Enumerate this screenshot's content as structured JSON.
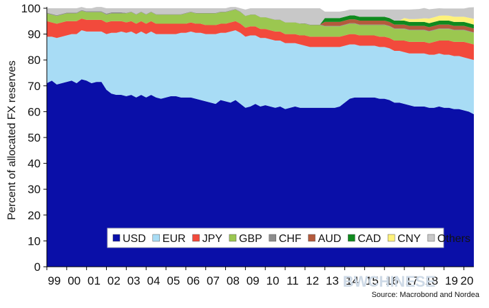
{
  "chart_data": {
    "type": "area",
    "stacked": true,
    "ylabel": "Percent of allocated FX reserves",
    "ylim": [
      0,
      100
    ],
    "yticks": [
      0,
      10,
      20,
      30,
      40,
      50,
      60,
      70,
      80,
      90,
      100
    ],
    "x_tick_labels": [
      "99",
      "00",
      "01",
      "02",
      "03",
      "04",
      "05",
      "06",
      "07",
      "08",
      "09",
      "10",
      "11",
      "12",
      "13",
      "14",
      "15",
      "16",
      "17",
      "18",
      "19",
      "20"
    ],
    "x_quarters": [
      "1999Q1",
      "1999Q2",
      "1999Q3",
      "1999Q4",
      "2000Q1",
      "2000Q2",
      "2000Q3",
      "2000Q4",
      "2001Q1",
      "2001Q2",
      "2001Q3",
      "2001Q4",
      "2002Q1",
      "2002Q2",
      "2002Q3",
      "2002Q4",
      "2003Q1",
      "2003Q2",
      "2003Q3",
      "2003Q4",
      "2004Q1",
      "2004Q2",
      "2004Q3",
      "2004Q4",
      "2005Q1",
      "2005Q2",
      "2005Q3",
      "2005Q4",
      "2006Q1",
      "2006Q2",
      "2006Q3",
      "2006Q4",
      "2007Q1",
      "2007Q2",
      "2007Q3",
      "2007Q4",
      "2008Q1",
      "2008Q2",
      "2008Q3",
      "2008Q4",
      "2009Q1",
      "2009Q2",
      "2009Q3",
      "2009Q4",
      "2010Q1",
      "2010Q2",
      "2010Q3",
      "2010Q4",
      "2011Q1",
      "2011Q2",
      "2011Q3",
      "2011Q4",
      "2012Q1",
      "2012Q2",
      "2012Q3",
      "2012Q4",
      "2013Q1",
      "2013Q2",
      "2013Q3",
      "2013Q4",
      "2014Q1",
      "2014Q2",
      "2014Q3",
      "2014Q4",
      "2015Q1",
      "2015Q2",
      "2015Q3",
      "2015Q4",
      "2016Q1",
      "2016Q2",
      "2016Q3",
      "2016Q4",
      "2017Q1",
      "2017Q2",
      "2017Q3",
      "2017Q4",
      "2018Q1",
      "2018Q2",
      "2018Q3",
      "2018Q4",
      "2019Q1",
      "2019Q2",
      "2019Q3",
      "2019Q4",
      "2020Q1",
      "2020Q2",
      "2020Q3"
    ],
    "series": [
      {
        "name": "USD",
        "color": "#0a0fa8",
        "values": [
          71,
          72,
          70.5,
          71,
          71.5,
          72,
          71,
          72.5,
          72,
          71,
          71.5,
          71.5,
          68.5,
          67,
          66.5,
          66.5,
          66,
          66.5,
          65.5,
          66.5,
          65.5,
          66.5,
          65.5,
          65,
          65.5,
          66,
          66,
          65.5,
          65.5,
          65.5,
          65,
          64.5,
          64,
          63.5,
          63,
          64.5,
          64,
          63.5,
          64.5,
          63,
          61.5,
          62,
          63,
          62,
          62.5,
          62,
          61.5,
          62,
          61,
          61.5,
          62,
          61.5,
          61.5,
          61.5,
          61.5,
          61.5,
          61.5,
          61.5,
          61.5,
          62,
          63.5,
          65,
          65.5,
          65.5,
          65.5,
          65.5,
          65.5,
          65,
          65,
          64.5,
          63.5,
          63.5,
          63,
          62.5,
          62,
          62,
          62,
          61.5,
          61.5,
          62,
          61.5,
          61.5,
          61,
          61,
          60.5,
          60,
          59
        ]
      },
      {
        "name": "EUR",
        "color": "#a8dcf5",
        "values": [
          18,
          17,
          18,
          18,
          18,
          18,
          19,
          19,
          19,
          20,
          19.5,
          19.5,
          21.5,
          23.5,
          24,
          24.5,
          24.5,
          24.5,
          24.5,
          24.5,
          24.5,
          24.5,
          24.5,
          25,
          24.5,
          24,
          24,
          25,
          25,
          25.5,
          25.5,
          26,
          26,
          26.5,
          27,
          26,
          26.5,
          27.5,
          27,
          27.5,
          27.5,
          27.5,
          26.5,
          26.5,
          26,
          26,
          26,
          25.5,
          25.5,
          25,
          24.5,
          24.5,
          24,
          23.5,
          23.5,
          23.5,
          23.5,
          23.5,
          23.5,
          23,
          22,
          21,
          20.5,
          20,
          20,
          20,
          20,
          20,
          20,
          20,
          20,
          20,
          20,
          20,
          20.5,
          20.5,
          20.5,
          20.5,
          20.5,
          20.5,
          20.5,
          20.5,
          20.5,
          20.5,
          20.5,
          20.5,
          21
        ]
      },
      {
        "name": "JPY",
        "color": "#f24a3c",
        "values": [
          6,
          5.5,
          5.5,
          5.5,
          5.5,
          5,
          5,
          4.5,
          4.5,
          4.5,
          4.5,
          4.5,
          4.5,
          4.5,
          4.5,
          4,
          4,
          4,
          4,
          4,
          4,
          4,
          4,
          4,
          4,
          4,
          4,
          3.5,
          3.5,
          3.5,
          3.5,
          3.5,
          3.5,
          3.5,
          3.5,
          3.5,
          3.5,
          3.5,
          3.5,
          3.5,
          3.5,
          3.5,
          3.5,
          3.5,
          3.5,
          3.5,
          3.5,
          3.5,
          3.5,
          3.5,
          3.5,
          3.5,
          4,
          4,
          4,
          4,
          4,
          4,
          4,
          4,
          4,
          4,
          4,
          4,
          4,
          4,
          4,
          4,
          4,
          4,
          4,
          4,
          4.5,
          4.5,
          4.5,
          4.5,
          4.5,
          4.5,
          5,
          5,
          5.5,
          5.5,
          5.5,
          5.5,
          6,
          6,
          6
        ]
      },
      {
        "name": "GBP",
        "color": "#9bc750",
        "values": [
          3,
          3,
          3,
          3,
          3,
          3,
          3,
          3,
          3,
          3,
          3,
          3,
          3,
          3,
          3,
          3,
          3.5,
          3.5,
          3.5,
          3.5,
          3.5,
          3.5,
          3.5,
          3.5,
          3.5,
          3.5,
          3.5,
          3.5,
          4,
          4,
          4,
          4,
          4.5,
          4.5,
          4.5,
          4.5,
          4.5,
          4.5,
          4.5,
          4.5,
          4.5,
          4.5,
          4.5,
          4.5,
          4.5,
          4.5,
          4.5,
          4.5,
          4.5,
          4.5,
          4.5,
          4.5,
          4.5,
          4.5,
          4.5,
          4.5,
          4,
          4,
          4,
          4,
          4,
          4,
          4,
          4,
          4,
          4,
          4,
          4.5,
          4.5,
          4.5,
          4.5,
          4.5,
          4.5,
          4.5,
          4.5,
          4.5,
          4.5,
          4.5,
          4.5,
          4.5,
          4.5,
          4.5,
          4.5,
          4.5,
          4.5,
          4.5,
          4.5
        ]
      },
      {
        "name": "CHF",
        "color": "#8c8c8c",
        "values": [
          0.3,
          0.3,
          0.3,
          0.3,
          0.3,
          0.3,
          0.3,
          0.3,
          0.3,
          0.3,
          0.3,
          0.3,
          0.4,
          0.4,
          0.4,
          0.4,
          0.2,
          0.2,
          0.2,
          0.2,
          0.2,
          0.2,
          0.2,
          0.2,
          0.2,
          0.2,
          0.2,
          0.2,
          0.2,
          0.2,
          0.2,
          0.2,
          0.2,
          0.2,
          0.2,
          0.2,
          0.2,
          0.2,
          0.2,
          0.2,
          0.1,
          0.1,
          0.1,
          0.1,
          0.1,
          0.1,
          0.1,
          0.1,
          0.1,
          0.1,
          0.1,
          0.1,
          0.2,
          0.2,
          0.2,
          0.2,
          0.2,
          0.2,
          0.2,
          0.2,
          0.2,
          0.2,
          0.2,
          0.2,
          0.2,
          0.2,
          0.2,
          0.2,
          0.2,
          0.2,
          0.2,
          0.2,
          0.2,
          0.2,
          0.2,
          0.2,
          0.2,
          0.2,
          0.2,
          0.2,
          0.2,
          0.2,
          0.2,
          0.2,
          0.2,
          0.2,
          0.2
        ]
      },
      {
        "name": "AUD",
        "color": "#b45a3c",
        "values": [
          0,
          0,
          0,
          0,
          0,
          0,
          0,
          0,
          0,
          0,
          0,
          0,
          0,
          0,
          0,
          0,
          0,
          0,
          0,
          0,
          0,
          0,
          0,
          0,
          0,
          0,
          0,
          0,
          0,
          0,
          0,
          0,
          0,
          0,
          0,
          0,
          0,
          0,
          0,
          0,
          0,
          0,
          0,
          0,
          0,
          0,
          0,
          0,
          0,
          0,
          0,
          0,
          0,
          0,
          0,
          0,
          1.5,
          1.5,
          1.5,
          1.5,
          1.5,
          1.5,
          1.5,
          1.5,
          1.5,
          1.5,
          1.5,
          1.5,
          1.5,
          1.5,
          1.5,
          1.5,
          1.5,
          1.5,
          1.5,
          1.5,
          1.5,
          1.5,
          1.5,
          1.5,
          1.5,
          1.5,
          1.5,
          1.5,
          1.5,
          1.5,
          1.5
        ]
      },
      {
        "name": "CAD",
        "color": "#0f8a1e",
        "values": [
          0,
          0,
          0,
          0,
          0,
          0,
          0,
          0,
          0,
          0,
          0,
          0,
          0,
          0,
          0,
          0,
          0,
          0,
          0,
          0,
          0,
          0,
          0,
          0,
          0,
          0,
          0,
          0,
          0,
          0,
          0,
          0,
          0,
          0,
          0,
          0,
          0,
          0,
          0,
          0,
          0,
          0,
          0,
          0,
          0,
          0,
          0,
          0,
          0,
          0,
          0,
          0,
          0,
          0,
          0,
          0,
          1.5,
          1.5,
          1.5,
          1.5,
          1.5,
          1.5,
          1.5,
          1.5,
          1.5,
          1.5,
          1.5,
          1.5,
          1.5,
          1.5,
          1.5,
          1.5,
          1.5,
          1.5,
          1.5,
          1.5,
          1.5,
          1.5,
          1.5,
          1.5,
          1.5,
          1.5,
          1.5,
          1.5,
          1.5,
          1.5,
          1.5
        ]
      },
      {
        "name": "CNY",
        "color": "#fff27a",
        "values": [
          0,
          0,
          0,
          0,
          0,
          0,
          0,
          0,
          0,
          0,
          0,
          0,
          0,
          0,
          0,
          0,
          0,
          0,
          0,
          0,
          0,
          0,
          0,
          0,
          0,
          0,
          0,
          0,
          0,
          0,
          0,
          0,
          0,
          0,
          0,
          0,
          0,
          0,
          0,
          0,
          0,
          0,
          0,
          0,
          0,
          0,
          0,
          0,
          0,
          0,
          0,
          0,
          0,
          0,
          0,
          0,
          0,
          0,
          0,
          0,
          0,
          0,
          0,
          0,
          0,
          0,
          0,
          0,
          0,
          0,
          0,
          0,
          1.0,
          1.1,
          1.1,
          1.2,
          1.4,
          1.8,
          1.8,
          1.9,
          2.0,
          1.9,
          2.0,
          2.0,
          2.0,
          2.1,
          2.2
        ]
      },
      {
        "name": "Others",
        "color": "#c8c8c8",
        "values": [
          1.7,
          2.2,
          2.7,
          2.2,
          1.7,
          1.7,
          1.7,
          1.2,
          1.2,
          1.2,
          1.7,
          1.7,
          2.1,
          1.6,
          1.6,
          1.6,
          1.8,
          1.3,
          2.3,
          1.3,
          2.3,
          1.3,
          2.3,
          2.3,
          2.3,
          2.3,
          2.3,
          2.3,
          1.8,
          1.3,
          1.8,
          1.8,
          1.8,
          1.8,
          1.8,
          1.3,
          1.3,
          1.3,
          0.8,
          1.3,
          2.4,
          2.4,
          2.4,
          3.4,
          3.4,
          3.9,
          4.4,
          4.4,
          5.4,
          5.4,
          5.4,
          5.9,
          5.8,
          6.3,
          6.3,
          6.3,
          2.5,
          2.5,
          2.5,
          2.5,
          2.3,
          2.3,
          2.3,
          2.8,
          2.8,
          2.8,
          2.8,
          2.8,
          2.8,
          3.3,
          4.3,
          4.3,
          3.3,
          3.7,
          3.8,
          3.8,
          4.0,
          3.6,
          3.3,
          2.9,
          2.7,
          2.8,
          3.2,
          3.2,
          3.2,
          4.0,
          4.5
        ]
      }
    ],
    "legend": [
      "USD",
      "EUR",
      "JPY",
      "GBP",
      "CHF",
      "AUD",
      "CAD",
      "CNY",
      "Others"
    ],
    "legend_position": "bottom-center inside plot",
    "grid": false,
    "source": "Source: Macrobond and Nordea",
    "watermark": "BWCHINESE"
  }
}
